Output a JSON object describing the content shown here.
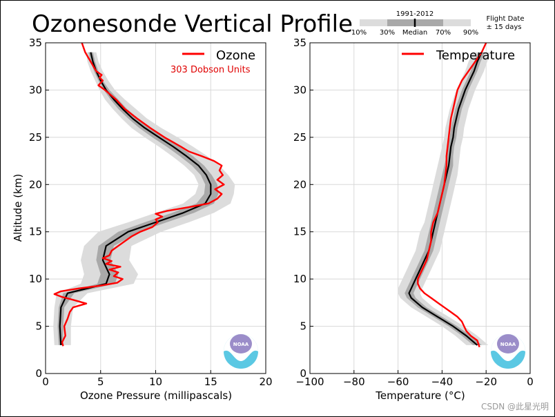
{
  "title": "Ozonesonde Vertical Profile",
  "key": {
    "years": "1991-2012",
    "labels": [
      "10%",
      "30%",
      "Median",
      "70%",
      "90%"
    ],
    "flight_date_line1": "Flight Date",
    "flight_date_line2": "± 15 days"
  },
  "watermark": "CSDN @此星光明",
  "logo_text": "NOAA",
  "colors": {
    "observed": "#ff0000",
    "median": "#000000",
    "band_outer": "#dcdcdc",
    "band_inner": "#a9a9a9",
    "grid": "#d8d8d8",
    "dobson": "#e00000"
  },
  "chart_data": [
    {
      "type": "line",
      "title": "",
      "xlabel": "Ozone Pressure (millipascals)",
      "ylabel": "Altitude (km)",
      "xlim": [
        0,
        20
      ],
      "ylim": [
        0,
        35
      ],
      "xticks": [
        0,
        5,
        10,
        15,
        20
      ],
      "yticks": [
        0,
        5,
        10,
        15,
        20,
        25,
        30,
        35
      ],
      "grid": true,
      "legend": {
        "placement": "top-right",
        "entries": [
          "Ozone"
        ],
        "note": "303 Dobson Units"
      },
      "climatology": {
        "altitude": [
          3,
          5,
          7,
          8.5,
          9.5,
          10.5,
          12,
          13.5,
          15,
          16,
          17,
          18,
          19,
          20,
          21,
          22,
          23,
          24,
          25,
          26,
          27,
          28,
          29,
          30,
          31,
          32,
          33,
          34
        ],
        "median": [
          1.4,
          1.3,
          1.4,
          2.0,
          5.5,
          5.8,
          5.2,
          5.5,
          7.5,
          10.0,
          12.5,
          14.5,
          15.0,
          15.0,
          14.6,
          13.9,
          12.8,
          11.6,
          10.3,
          9.0,
          7.9,
          7.0,
          6.2,
          5.5,
          5.0,
          4.6,
          4.3,
          4.1
        ],
        "p30": [
          1.2,
          1.1,
          1.2,
          1.6,
          4.7,
          5.0,
          4.6,
          4.8,
          6.6,
          9.0,
          11.5,
          13.7,
          14.4,
          14.5,
          14.1,
          13.3,
          12.2,
          11.0,
          9.7,
          8.5,
          7.5,
          6.6,
          5.9,
          5.3,
          4.8,
          4.4,
          4.1,
          3.9
        ],
        "p70": [
          1.6,
          1.6,
          1.7,
          2.6,
          6.3,
          6.6,
          5.9,
          6.2,
          8.5,
          11.0,
          13.5,
          15.3,
          15.7,
          15.6,
          15.1,
          14.4,
          13.4,
          12.2,
          10.9,
          9.5,
          8.4,
          7.4,
          6.6,
          5.8,
          5.2,
          4.8,
          4.5,
          4.3
        ],
        "p10": [
          0.8,
          0.7,
          0.8,
          1.0,
          3.2,
          3.5,
          3.2,
          3.5,
          4.8,
          7.5,
          10.0,
          12.5,
          13.6,
          13.9,
          13.5,
          12.6,
          11.5,
          10.3,
          9.0,
          7.8,
          6.9,
          6.1,
          5.4,
          4.9,
          4.5,
          4.1,
          3.8,
          3.7
        ],
        "p90": [
          2.3,
          2.3,
          2.5,
          3.8,
          8.0,
          8.4,
          7.6,
          7.8,
          10.5,
          13.0,
          15.3,
          16.8,
          17.1,
          17.2,
          16.6,
          15.8,
          14.7,
          13.4,
          12.0,
          10.5,
          9.2,
          8.2,
          7.2,
          6.3,
          5.7,
          5.2,
          4.8,
          4.6
        ]
      },
      "series": [
        {
          "name": "Ozone",
          "altitude": [
            2.9,
            3.3,
            4.0,
            5.0,
            5.8,
            6.5,
            7.0,
            7.4,
            7.8,
            8.1,
            8.4,
            8.7,
            9.0,
            9.3,
            9.6,
            10.0,
            10.3,
            10.7,
            11.0,
            11.3,
            11.6,
            11.9,
            12.2,
            12.5,
            13.0,
            13.5,
            14.0,
            14.5,
            15.0,
            15.5,
            16.0,
            16.3,
            16.6,
            16.9,
            17.2,
            17.6,
            18.0,
            18.5,
            19.0,
            19.5,
            20.0,
            20.5,
            21.0,
            21.5,
            22.0,
            22.5,
            23.0,
            23.5,
            24.0,
            25.0,
            26.0,
            27.0,
            28.0,
            29.0,
            30.0,
            30.5,
            31.0,
            31.3,
            31.6,
            32.0,
            33.0,
            34.0,
            35.0
          ],
          "values": [
            1.6,
            1.5,
            1.8,
            1.7,
            2.0,
            2.2,
            2.5,
            3.7,
            2.5,
            1.5,
            0.8,
            1.4,
            3.0,
            5.0,
            6.5,
            7.0,
            6.2,
            6.6,
            5.8,
            6.8,
            5.5,
            6.0,
            5.2,
            5.8,
            6.0,
            6.6,
            7.2,
            7.8,
            8.6,
            9.7,
            10.2,
            10.0,
            10.6,
            10.0,
            11.0,
            13.0,
            14.8,
            15.6,
            16.0,
            15.4,
            16.2,
            15.6,
            16.1,
            15.8,
            16.0,
            15.3,
            14.2,
            13.0,
            12.3,
            10.8,
            9.5,
            8.3,
            7.2,
            6.4,
            5.4,
            4.8,
            5.2,
            4.9,
            5.1,
            4.6,
            4.1,
            3.6,
            3.3
          ]
        }
      ]
    },
    {
      "type": "line",
      "title": "",
      "xlabel": "Temperature (°C)",
      "ylabel": "",
      "xlim": [
        -100,
        0
      ],
      "ylim": [
        0,
        35
      ],
      "xticks": [
        -100,
        -80,
        -60,
        -40,
        -20,
        0
      ],
      "yticks": [
        0,
        5,
        10,
        15,
        20,
        25,
        30,
        35
      ],
      "grid": true,
      "legend": {
        "placement": "top-right",
        "entries": [
          "Temperature"
        ]
      },
      "climatology": {
        "altitude": [
          3,
          4,
          5,
          6,
          7,
          8,
          8.5,
          9,
          10,
          11,
          12,
          13,
          14,
          15,
          16,
          17,
          18,
          19,
          20,
          21,
          22,
          23,
          24,
          25,
          26,
          27,
          28,
          29,
          30,
          31,
          32,
          33,
          34
        ],
        "median": [
          -24,
          -29,
          -35,
          -42,
          -49,
          -54,
          -55,
          -54,
          -52,
          -50,
          -48,
          -46,
          -45,
          -44,
          -43,
          -42,
          -41,
          -40,
          -39,
          -38,
          -37,
          -36.5,
          -36,
          -35,
          -34.5,
          -33.5,
          -32.5,
          -31,
          -29.5,
          -27.5,
          -25.5,
          -24,
          -22
        ],
        "p30": [
          -26,
          -31,
          -37,
          -44,
          -51,
          -56,
          -57,
          -56,
          -54,
          -52,
          -50,
          -48,
          -47,
          -46,
          -45,
          -44,
          -43,
          -42,
          -41,
          -40,
          -39,
          -38,
          -37.5,
          -36.5,
          -36,
          -35,
          -34,
          -32.5,
          -31,
          -29,
          -27,
          -25.5,
          -23.5
        ],
        "p70": [
          -22,
          -27,
          -33,
          -40,
          -47,
          -52,
          -53,
          -52,
          -50,
          -48,
          -46,
          -44,
          -43,
          -42,
          -41,
          -40,
          -39,
          -38,
          -37,
          -36,
          -35,
          -35,
          -34.5,
          -33.5,
          -33,
          -32,
          -31,
          -29.5,
          -28,
          -26,
          -24,
          -22.5,
          -20.5
        ],
        "p10": [
          -29,
          -34,
          -40,
          -47,
          -54,
          -59,
          -60,
          -60,
          -58,
          -56,
          -54,
          -52,
          -51,
          -50,
          -48,
          -47,
          -46,
          -45,
          -44,
          -43,
          -42,
          -41,
          -40,
          -39,
          -38.5,
          -37.5,
          -36.5,
          -35,
          -33.5,
          -31.5,
          -29.5,
          -28,
          -26
        ],
        "p90": [
          -19,
          -24,
          -30,
          -37,
          -44,
          -49,
          -50,
          -49,
          -47,
          -45,
          -43,
          -41,
          -40,
          -39,
          -38,
          -37,
          -36,
          -35,
          -34,
          -33,
          -32.5,
          -32,
          -31.5,
          -30.5,
          -30,
          -29,
          -28,
          -26.5,
          -25,
          -23,
          -21,
          -19.5,
          -18
        ]
      },
      "series": [
        {
          "name": "Temperature",
          "altitude": [
            2.8,
            3.5,
            4.0,
            4.5,
            5.0,
            5.5,
            6.0,
            6.5,
            7.0,
            7.5,
            8.0,
            8.5,
            9.0,
            9.5,
            10.0,
            10.5,
            11.0,
            12.0,
            13.0,
            14.0,
            15.0,
            16.0,
            17.0,
            18.0,
            19.0,
            20.0,
            21.0,
            22.0,
            23.0,
            24.0,
            25.0,
            26.0,
            27.0,
            28.0,
            29.0,
            30.0,
            31.0,
            32.0,
            33.0,
            34.0,
            35.0
          ],
          "values": [
            -23,
            -24,
            -27,
            -29,
            -30,
            -31,
            -33,
            -36,
            -39,
            -42,
            -45,
            -48,
            -50,
            -51,
            -51,
            -50,
            -49,
            -47,
            -46,
            -45,
            -45,
            -44,
            -42,
            -41,
            -40,
            -39,
            -38.5,
            -38,
            -38,
            -37.5,
            -37,
            -36.5,
            -36,
            -35,
            -34,
            -33,
            -31,
            -28,
            -25,
            -22,
            -20
          ]
        }
      ]
    }
  ]
}
